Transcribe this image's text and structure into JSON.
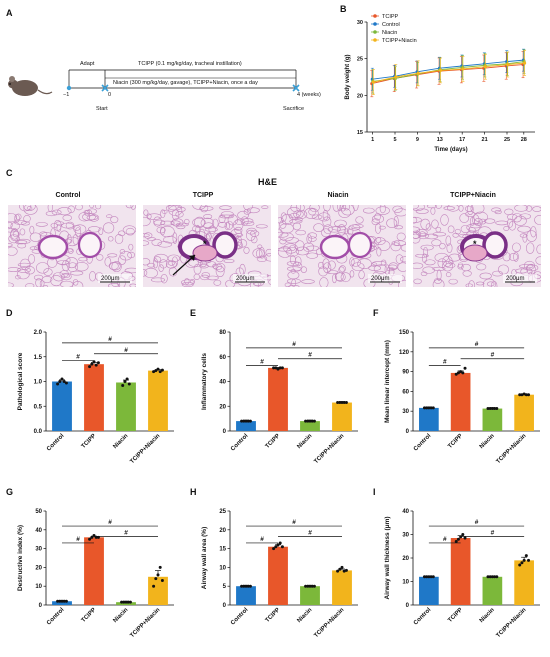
{
  "panels": {
    "A": "A",
    "B": "B",
    "C": "C",
    "D": "D",
    "E": "E",
    "F": "F",
    "G": "G",
    "H": "H",
    "I": "I"
  },
  "timeline": {
    "adapt": "Adapt",
    "tcipp": "TCIPP (0.1 mg/kg/day, tracheal instillation)",
    "niacin": "Niacin (300 mg/kg/day, gavage), TCIPP+Niacin, once a day",
    "t_minus1": "−1",
    "t0": "0",
    "t4": "4 (weeks)",
    "start": "Start",
    "sacrifice": "Sacrifice"
  },
  "he": {
    "title": "H&E",
    "labels": [
      "Control",
      "TCIPP",
      "Niacin",
      "TCIPP+Niacin"
    ],
    "scale": "200μm"
  },
  "colors": {
    "Control": "#1f78c8",
    "TCIPP": "#e8572a",
    "Niacin": "#7cb83a",
    "TCIPP+Niacin": "#f2b41c"
  },
  "chart_data": [
    {
      "id": "B",
      "type": "line",
      "ylabel": "Body weight (g)",
      "xlabel": "Time (days)",
      "x": [
        1,
        5,
        9,
        13,
        17,
        21,
        25,
        28
      ],
      "ylim": [
        15,
        30
      ],
      "yticks": [
        15,
        20,
        25,
        30
      ],
      "series": [
        {
          "name": "TCIPP",
          "values": [
            21.6,
            22.3,
            22.8,
            23.3,
            23.5,
            23.7,
            24.0,
            24.2
          ],
          "err": [
            1.8,
            1.8,
            1.8,
            1.8,
            1.8,
            1.8,
            1.8,
            1.8
          ]
        },
        {
          "name": "Control",
          "values": [
            22.2,
            22.6,
            23.2,
            23.7,
            24.0,
            24.3,
            24.6,
            24.8
          ],
          "err": [
            1.5,
            1.5,
            1.5,
            1.5,
            1.5,
            1.5,
            1.5,
            1.5
          ]
        },
        {
          "name": "Niacin",
          "values": [
            21.9,
            22.3,
            22.9,
            23.5,
            23.8,
            24.1,
            24.3,
            24.6
          ],
          "err": [
            1.6,
            1.6,
            1.6,
            1.6,
            1.6,
            1.6,
            1.6,
            1.6
          ]
        },
        {
          "name": "TCIPP+Niacin",
          "values": [
            21.8,
            22.5,
            23.0,
            23.4,
            23.6,
            23.9,
            24.2,
            24.4
          ],
          "err": [
            1.7,
            1.7,
            1.7,
            1.7,
            1.7,
            1.7,
            1.7,
            1.7
          ]
        }
      ]
    },
    {
      "id": "D",
      "type": "bar",
      "ylabel": "Pathological score",
      "categories": [
        "Control",
        "TCIPP",
        "Niacin",
        "TCIPP+Niacin"
      ],
      "values": [
        1.0,
        1.35,
        0.98,
        1.22
      ],
      "ylim": [
        0,
        2.0
      ],
      "yticks": [
        0.0,
        0.5,
        1.0,
        1.5,
        2.0
      ],
      "tickfmt": 1,
      "points": [
        [
          0.95,
          1.0,
          1.05,
          1.0,
          0.97
        ],
        [
          1.3,
          1.35,
          1.4,
          1.33,
          1.38
        ],
        [
          0.92,
          1.0,
          1.05,
          0.95
        ],
        [
          1.2,
          1.22,
          1.25,
          1.2,
          1.23
        ]
      ],
      "sig": [
        "#",
        "#",
        "#"
      ]
    },
    {
      "id": "E",
      "type": "bar",
      "ylabel": "Inflammatory cells",
      "categories": [
        "Control",
        "TCIPP",
        "Niacin",
        "TCIPP+Niacin"
      ],
      "values": [
        8,
        51,
        8,
        23
      ],
      "ylim": [
        0,
        80
      ],
      "yticks": [
        0,
        20,
        40,
        60,
        80
      ],
      "tickfmt": 0,
      "points": [
        [
          8,
          8,
          8,
          8,
          8
        ],
        [
          51,
          51,
          50,
          51,
          51
        ],
        [
          8,
          8,
          8,
          8,
          8
        ],
        [
          23,
          23,
          23,
          23,
          23
        ]
      ],
      "sig": [
        "#",
        "#",
        "#"
      ]
    },
    {
      "id": "F",
      "type": "bar",
      "ylabel": "Mean linear intercept (mm)",
      "categories": [
        "Control",
        "TCIPP",
        "Niacin",
        "TCIPP+Niacin"
      ],
      "values": [
        35,
        88,
        34,
        55
      ],
      "ylim": [
        0,
        150
      ],
      "yticks": [
        0,
        30,
        60,
        90,
        120,
        150
      ],
      "tickfmt": 0,
      "points": [
        [
          35,
          35,
          35,
          35,
          35
        ],
        [
          86,
          88,
          90,
          88,
          95
        ],
        [
          34,
          34,
          34,
          34,
          34
        ],
        [
          55,
          55,
          56,
          55,
          55
        ]
      ],
      "sig": [
        "#",
        "#",
        "#"
      ]
    },
    {
      "id": "G",
      "type": "bar",
      "ylabel": "Destructive index (%)",
      "categories": [
        "Control",
        "TCIPP",
        "Niacin",
        "TCIPP+Niacin"
      ],
      "values": [
        2,
        36,
        1.5,
        15
      ],
      "ylim": [
        0,
        50
      ],
      "yticks": [
        0,
        10,
        20,
        30,
        40,
        50
      ],
      "tickfmt": 0,
      "points": [
        [
          2,
          2,
          2,
          2,
          2
        ],
        [
          35,
          36,
          37,
          36,
          36
        ],
        [
          1.5,
          1.5,
          1.5,
          1.5,
          1.5
        ],
        [
          10,
          14,
          16,
          20,
          13
        ]
      ],
      "sig": [
        "#",
        "#",
        "#"
      ]
    },
    {
      "id": "H",
      "type": "bar",
      "ylabel": "Airway wall area (%)",
      "categories": [
        "Control",
        "TCIPP",
        "Niacin",
        "TCIPP+Niacin"
      ],
      "values": [
        5,
        15.5,
        5,
        9.2
      ],
      "ylim": [
        0,
        25
      ],
      "yticks": [
        0,
        5,
        10,
        15,
        20,
        25
      ],
      "tickfmt": 0,
      "points": [
        [
          5,
          5,
          5,
          5,
          5
        ],
        [
          15,
          15.5,
          16,
          16.5,
          15.5
        ],
        [
          5,
          5,
          5,
          5,
          5
        ],
        [
          9,
          9.5,
          10,
          9,
          9.2
        ]
      ],
      "sig": [
        "#",
        "#",
        "#"
      ]
    },
    {
      "id": "I",
      "type": "bar",
      "ylabel": "Airway wall thickness (μm)",
      "categories": [
        "Control",
        "TCIPP",
        "Niacin",
        "TCIPP+Niacin"
      ],
      "values": [
        12,
        28.5,
        12,
        19
      ],
      "ylim": [
        0,
        40
      ],
      "yticks": [
        0,
        10,
        20,
        30,
        40
      ],
      "tickfmt": 0,
      "points": [
        [
          12,
          12,
          12,
          12,
          12
        ],
        [
          27,
          28,
          29,
          30,
          28.5
        ],
        [
          12,
          12,
          12,
          12,
          12
        ],
        [
          17,
          18,
          19,
          21,
          19
        ]
      ],
      "sig": [
        "#",
        "#",
        "#"
      ]
    }
  ]
}
